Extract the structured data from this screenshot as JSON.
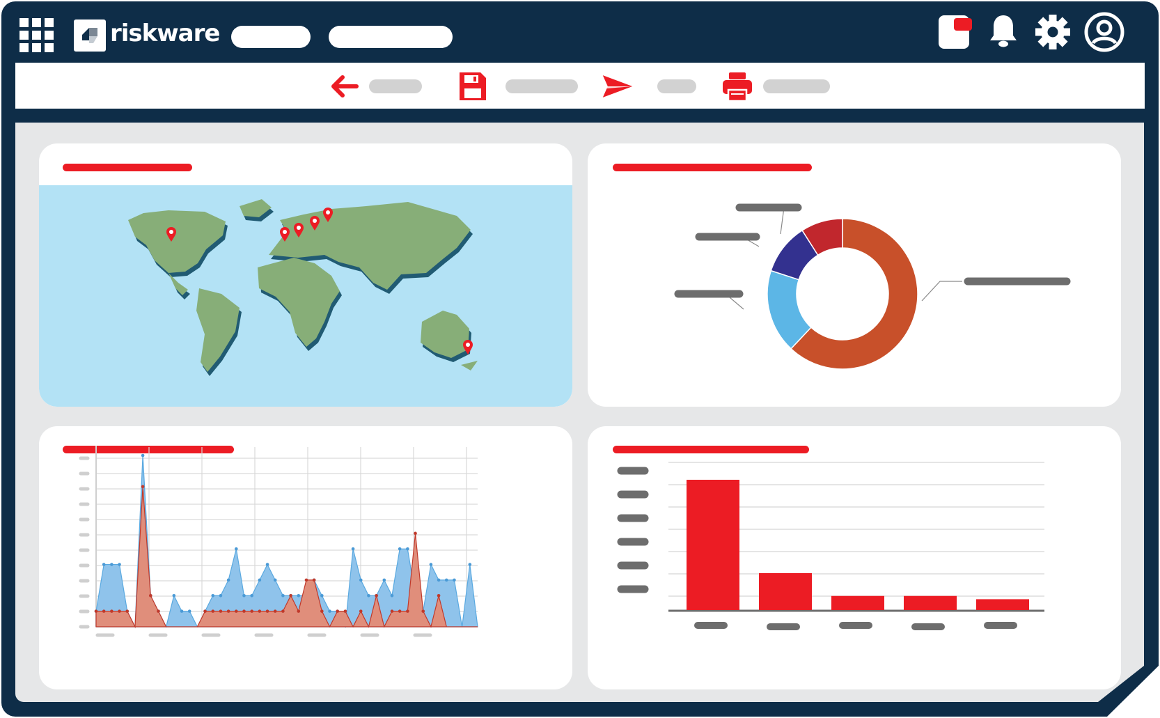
{
  "app": {
    "brand": "riskware",
    "nav_pills": [
      {
        "name": "nav-pill-1"
      },
      {
        "name": "nav-pill-2"
      }
    ]
  },
  "colors": {
    "frame": "#0e2d48",
    "accent_red": "#ec1c24",
    "canvas": "#e6e7e8",
    "map_water": "#b3e2f5",
    "map_land": "#87ae78",
    "donut_orange": "#c8502a",
    "donut_blue": "#5cb6e6",
    "donut_navy": "#33318f",
    "donut_red": "#c1272d",
    "area_blue": "#8fc3eb",
    "area_red": "#e08e7b"
  },
  "toolbar": {
    "items": [
      {
        "icon": "back-arrow-icon"
      },
      {
        "icon": "save-icon"
      },
      {
        "icon": "send-icon"
      },
      {
        "icon": "print-icon"
      }
    ]
  },
  "header_icons": [
    "grid-menu-icon",
    "notes-icon",
    "bell-icon",
    "gear-icon",
    "user-avatar-icon"
  ],
  "map": {
    "pins": [
      {
        "place": "north-america"
      },
      {
        "place": "uk"
      },
      {
        "place": "europe"
      },
      {
        "place": "scandinavia"
      },
      {
        "place": "finland"
      },
      {
        "place": "australia"
      }
    ]
  },
  "chart_data": [
    {
      "type": "pie",
      "variant": "donut",
      "labels_visible": false,
      "values": [
        62,
        18,
        11,
        9
      ],
      "colors": [
        "#c8502a",
        "#5cb6e6",
        "#33318f",
        "#c1272d"
      ]
    },
    {
      "type": "area",
      "labels_visible": false,
      "ylim": [
        0,
        11
      ],
      "x": [
        0,
        1,
        2,
        3,
        4,
        5,
        6,
        7,
        8,
        9,
        10,
        11,
        12,
        13,
        14,
        15,
        16,
        17,
        18,
        19,
        20,
        21,
        22,
        23,
        24,
        25,
        26,
        27,
        28,
        29,
        30,
        31,
        32,
        33,
        34,
        35,
        36,
        37,
        38,
        39,
        40,
        41,
        42,
        43,
        44,
        45,
        46,
        47,
        48,
        49
      ],
      "series": [
        {
          "color": "#8fc3eb",
          "values": [
            1,
            4,
            4,
            4,
            1,
            0,
            11,
            2,
            1,
            0,
            2,
            1,
            1,
            0,
            1,
            2,
            2,
            3,
            5,
            2,
            2,
            3,
            4,
            3,
            2,
            2,
            2,
            2,
            3,
            2,
            1,
            1,
            0,
            5,
            3,
            2,
            2,
            3,
            2,
            5,
            5,
            2,
            1,
            4,
            3,
            3,
            3,
            0,
            4,
            0
          ]
        },
        {
          "color": "#e08e7b",
          "values": [
            1,
            1,
            1,
            1,
            1,
            0,
            9,
            2,
            1,
            0,
            0,
            0,
            0,
            0,
            1,
            1,
            1,
            1,
            1,
            1,
            1,
            1,
            1,
            1,
            1,
            2,
            1,
            3,
            3,
            1,
            0,
            1,
            1,
            0,
            1,
            0,
            2,
            0,
            1,
            1,
            1,
            6,
            1,
            0,
            2,
            0,
            0,
            0,
            0,
            0
          ]
        }
      ]
    },
    {
      "type": "bar",
      "labels_visible": false,
      "categories": [
        "c1",
        "c2",
        "c3",
        "c4",
        "c5"
      ],
      "values": [
        6.0,
        1.7,
        0.65,
        0.65,
        0.5
      ],
      "ylim": [
        0,
        6.8
      ],
      "color": "#ec1c24"
    }
  ]
}
